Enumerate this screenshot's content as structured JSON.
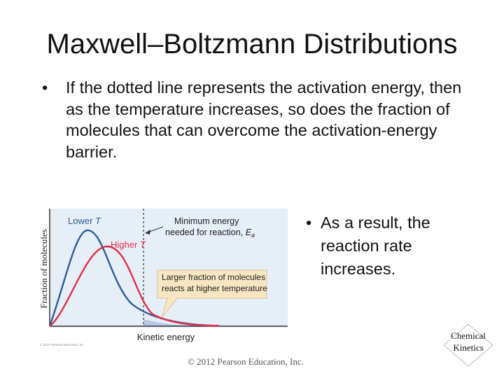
{
  "slide": {
    "title": "Maxwell–Boltzmann Distributions",
    "bullet_glyph": "•",
    "bullet_1": "If the dotted line represents the activation energy, then as the temperature increases, so does the fraction of molecules that can overcome the activation-energy barrier.",
    "bullet_2": "As a result, the reaction rate increases.",
    "copyright": "© 2012 Pearson Education, Inc.",
    "badge_line_1": "Chemical",
    "badge_line_2": "Kinetics"
  },
  "figure": {
    "y_axis_label": "Fraction of molecules",
    "x_axis_label": "Kinetic energy",
    "lower_label": "Lower",
    "higher_label": "Higher",
    "temperature_symbol": "T",
    "min_energy_line_1": "Minimum energy",
    "min_energy_line_2": "needed for reaction,",
    "ea_symbol": "E",
    "ea_subscript": "a",
    "callout_line_1": "Larger fraction of molecules",
    "callout_line_2": "reacts at higher temperature",
    "credit": "© 2012 Pearson Education, Inc.",
    "colors": {
      "lower_curve": "#2f5c98",
      "higher_curve": "#e0304a",
      "callout_fill": "#f7e6c1",
      "plot_bg": "#e6eef7"
    }
  }
}
